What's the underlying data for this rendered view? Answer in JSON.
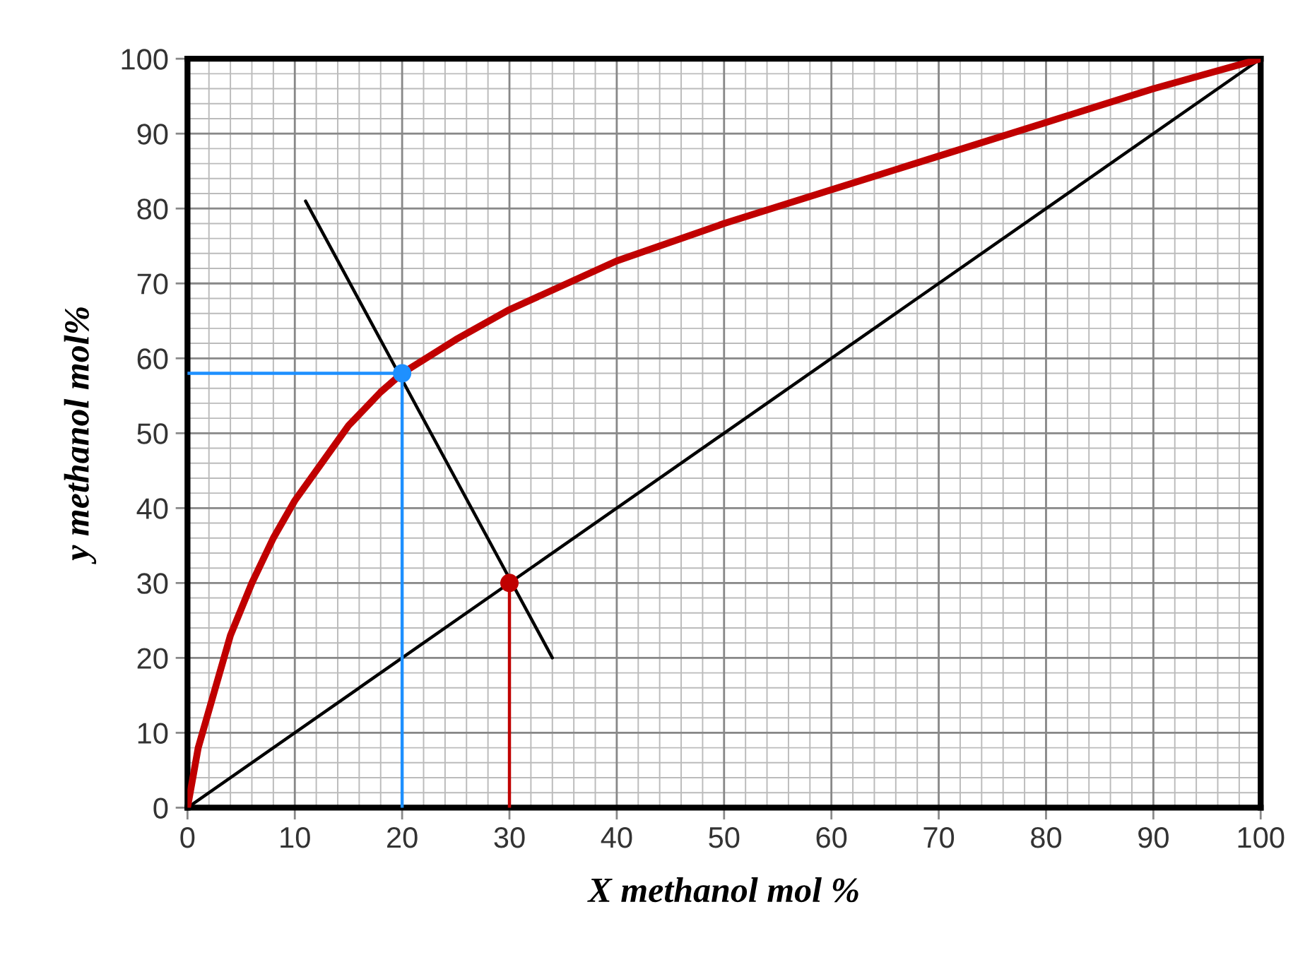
{
  "chart_data": {
    "type": "line",
    "xlabel": "X methanol mol %",
    "ylabel": "y methanol mol%",
    "xlim": [
      0,
      100
    ],
    "ylim": [
      0,
      100
    ],
    "xticks": [
      0,
      10,
      20,
      30,
      40,
      50,
      60,
      70,
      80,
      90,
      100
    ],
    "yticks": [
      0,
      10,
      20,
      30,
      40,
      50,
      60,
      70,
      80,
      90,
      100
    ],
    "grid": true,
    "legend": false,
    "marker": "none",
    "line_style": "solid",
    "series": [
      {
        "color": "#c00000",
        "x": [
          0,
          1,
          2,
          4,
          6,
          8,
          10,
          12,
          15,
          18,
          20,
          25,
          30,
          40,
          50,
          60,
          70,
          80,
          90,
          100
        ],
        "values": [
          0,
          8,
          13,
          23,
          30,
          36,
          41,
          45,
          51,
          55.5,
          58,
          62.5,
          66.5,
          73,
          78,
          82.5,
          87,
          91.5,
          96,
          100
        ]
      },
      {
        "color": "#000000",
        "x": [
          0,
          100
        ],
        "values": [
          0,
          100
        ]
      },
      {
        "color": "#000000",
        "x": [
          11,
          34
        ],
        "values": [
          81,
          20
        ]
      },
      {
        "color": "#1e90ff",
        "x": [
          0,
          20,
          20
        ],
        "values": [
          58,
          58,
          0
        ]
      },
      {
        "color": "#c00000",
        "x": [
          30,
          30
        ],
        "values": [
          30,
          0
        ]
      },
      {
        "type": "scatter",
        "marker": "circle",
        "color": "#1e90ff",
        "x": [
          20
        ],
        "values": [
          58
        ]
      },
      {
        "type": "scatter",
        "marker": "circle",
        "color": "#c00000",
        "x": [
          30
        ],
        "values": [
          30
        ]
      }
    ]
  }
}
